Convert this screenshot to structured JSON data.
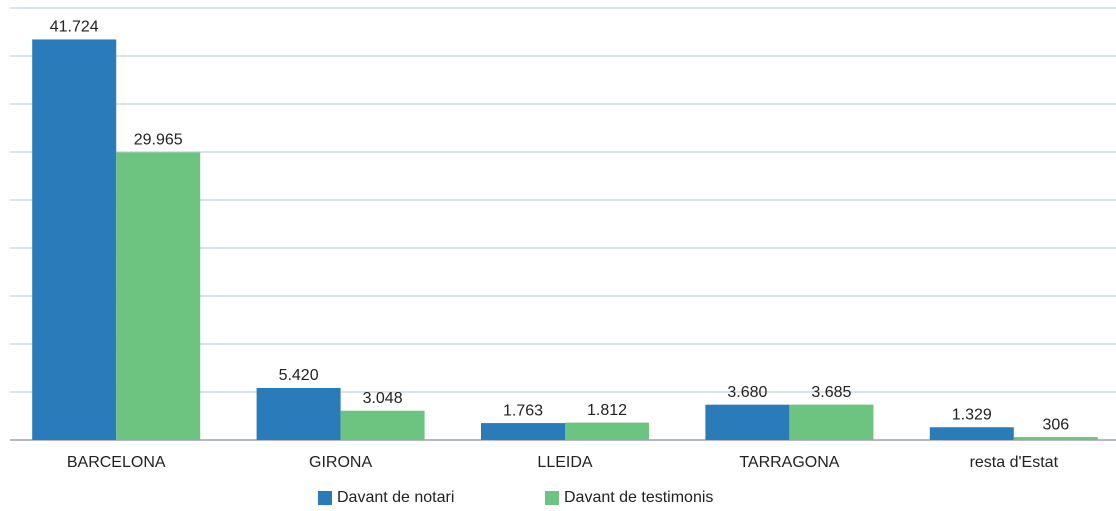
{
  "chart_data": {
    "type": "bar",
    "categories": [
      "BARCELONA",
      "GIRONA",
      "LLEIDA",
      "TARRAGONA",
      "resta d'Estat"
    ],
    "series": [
      {
        "name": "Davant de notari",
        "color": "#2a7bb9",
        "values": [
          41724,
          5420,
          1763,
          3680,
          1329
        ],
        "value_labels": [
          "41.724",
          "5.420",
          "1.763",
          "3.680",
          "1.329"
        ]
      },
      {
        "name": "Davant de testimonis",
        "color": "#6cc480",
        "values": [
          29965,
          3048,
          1812,
          3685,
          306
        ],
        "value_labels": [
          "29.965",
          "3.048",
          "1.812",
          "3.685",
          "306"
        ]
      }
    ],
    "ylim": [
      0,
      45000
    ],
    "yticks": [
      0,
      5000,
      10000,
      15000,
      20000,
      25000,
      30000,
      35000,
      40000,
      45000
    ],
    "grid": true,
    "legend": "bottom"
  }
}
